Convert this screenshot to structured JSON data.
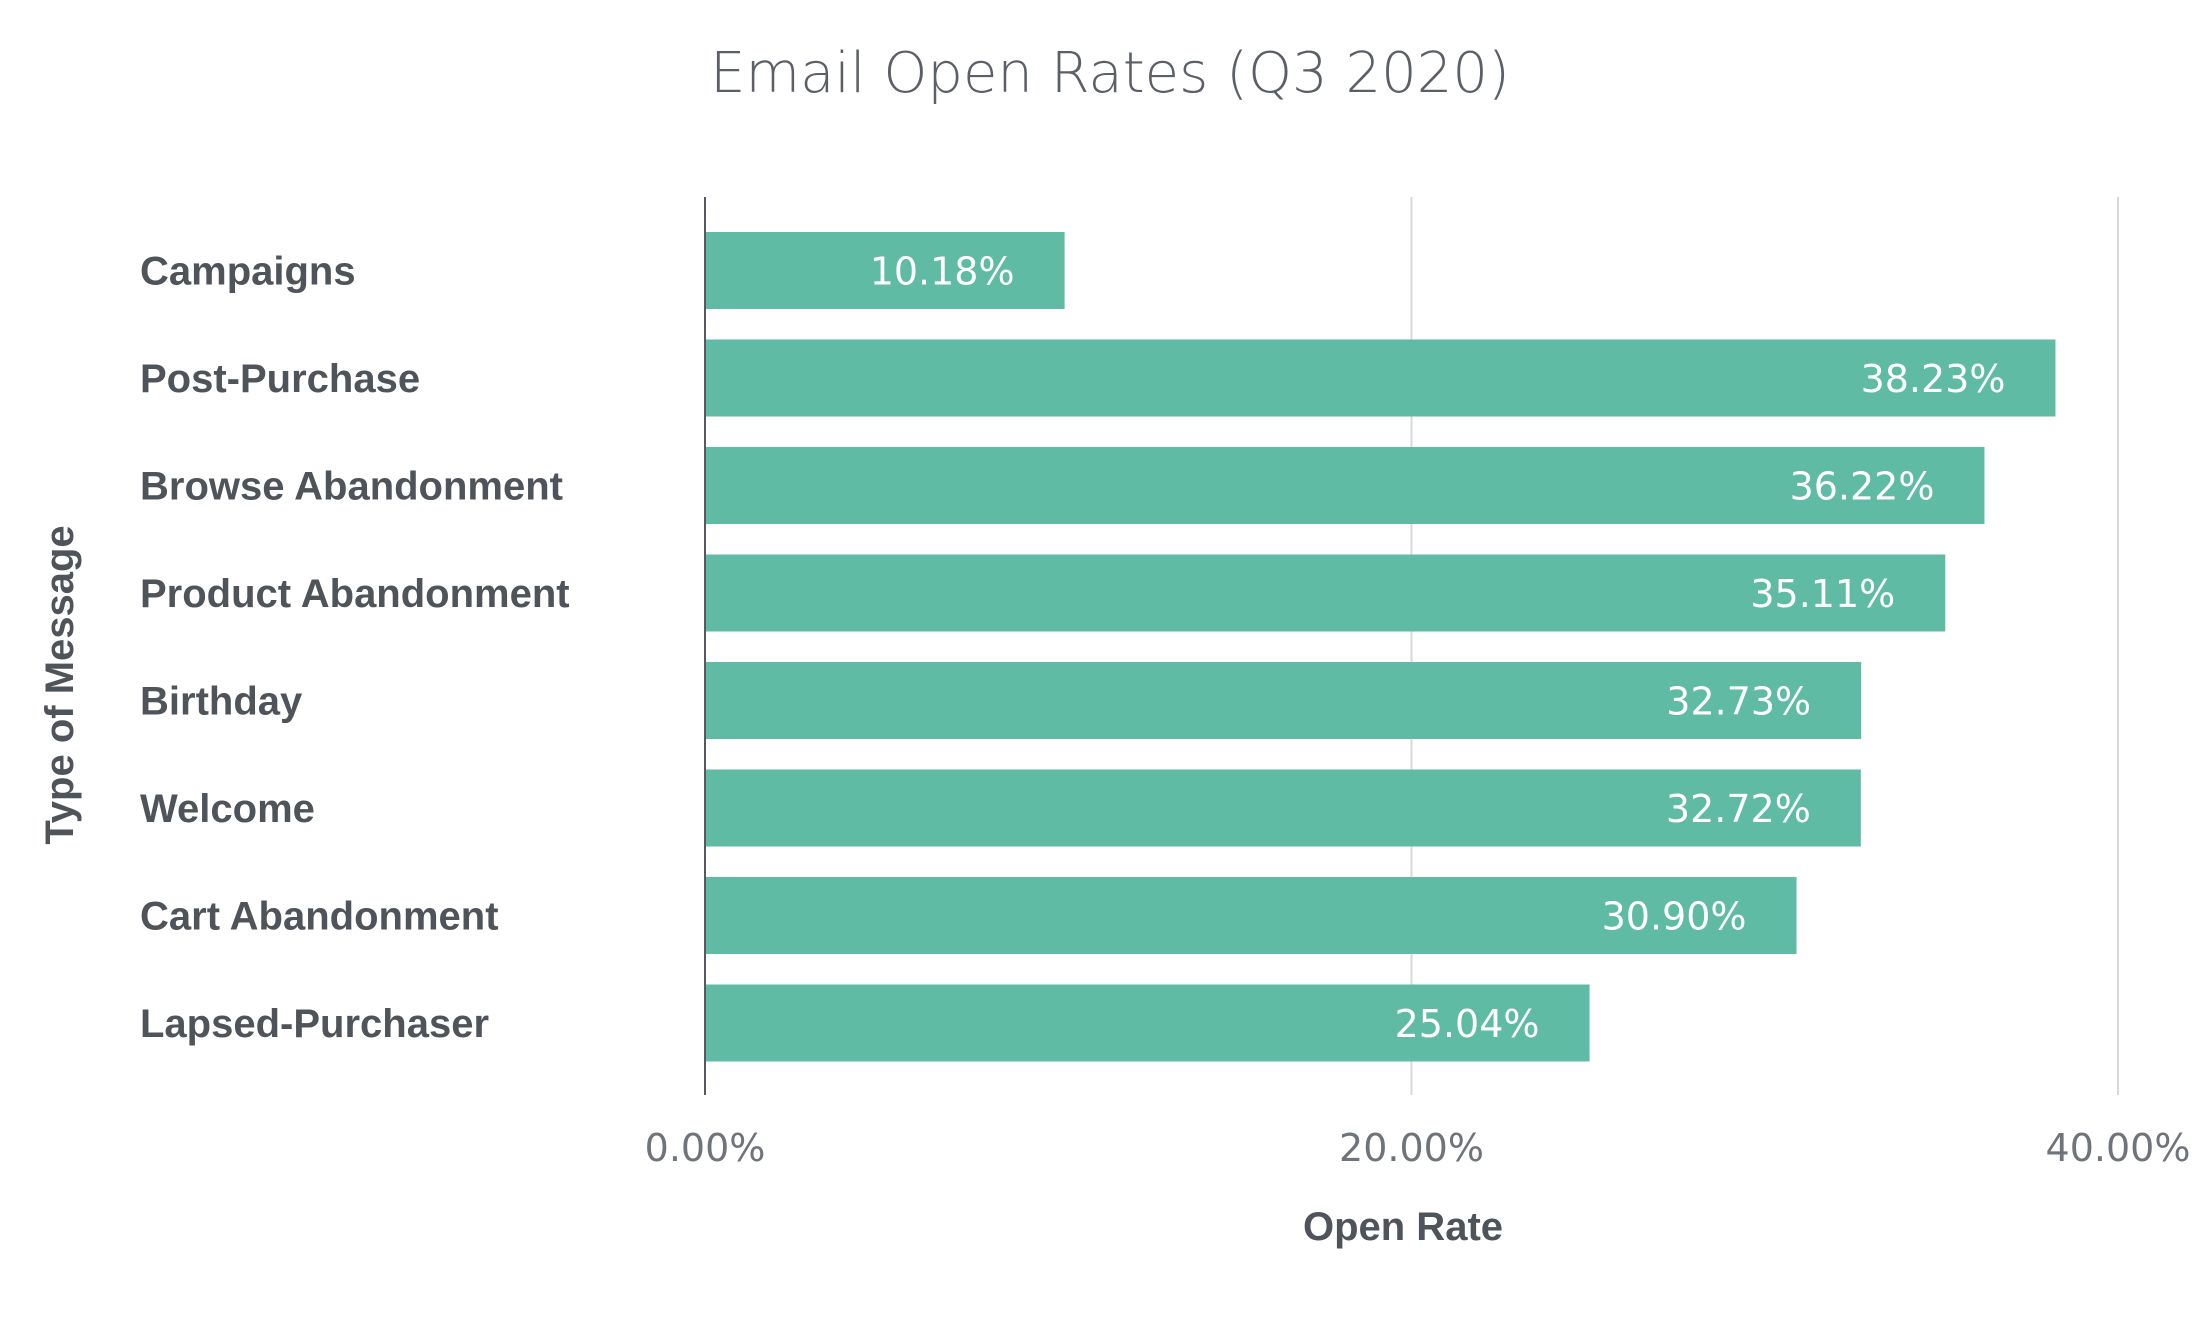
{
  "chart_data": {
    "type": "bar",
    "orientation": "horizontal",
    "title": "Email Open Rates (Q3 2020)",
    "xlabel": "Open Rate",
    "ylabel": "Type of Message",
    "categories": [
      "Campaigns",
      "Post-Purchase",
      "Browse Abandonment",
      "Product Abandonment",
      "Birthday",
      "Welcome",
      "Cart Abandonment",
      "Lapsed-Purchaser"
    ],
    "values": [
      10.18,
      38.23,
      36.22,
      35.11,
      32.73,
      32.72,
      30.9,
      25.04
    ],
    "value_labels": [
      "10.18%",
      "38.23%",
      "36.22%",
      "35.11%",
      "32.73%",
      "32.72%",
      "30.90%",
      "25.04%"
    ],
    "xlim": [
      0,
      40
    ],
    "xticks": [
      0,
      20,
      40
    ],
    "xtick_labels": [
      "0.00%",
      "20.00%",
      "40.00%"
    ],
    "grid": true,
    "colors": {
      "bar": "#5fbba4",
      "grid": "#d9d9d9",
      "axis": "#555a60"
    }
  }
}
